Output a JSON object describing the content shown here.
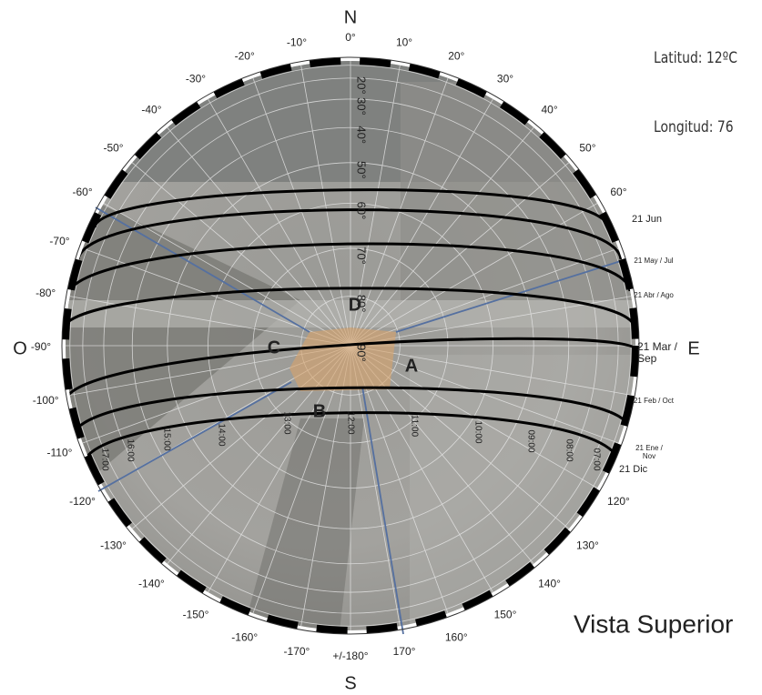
{
  "compass": {
    "north": "N",
    "south": "S",
    "west": "O",
    "east": "E"
  },
  "azimuth_labels": [
    {
      "value": 0,
      "label": "0°"
    },
    {
      "value": 10,
      "label": "10°"
    },
    {
      "value": 20,
      "label": "20°"
    },
    {
      "value": 30,
      "label": "30°"
    },
    {
      "value": 40,
      "label": "40°"
    },
    {
      "value": 50,
      "label": "50°"
    },
    {
      "value": 60,
      "label": "60°"
    },
    {
      "value": 120,
      "label": "120°"
    },
    {
      "value": 130,
      "label": "130°"
    },
    {
      "value": 140,
      "label": "140°"
    },
    {
      "value": 150,
      "label": "150°"
    },
    {
      "value": 160,
      "label": "160°"
    },
    {
      "value": 170,
      "label": "170°"
    },
    {
      "value": 180,
      "label": "+/-180°"
    },
    {
      "value": -10,
      "label": "-10°"
    },
    {
      "value": -20,
      "label": "-20°"
    },
    {
      "value": -30,
      "label": "-30°"
    },
    {
      "value": -40,
      "label": "-40°"
    },
    {
      "value": -50,
      "label": "-50°"
    },
    {
      "value": -60,
      "label": "-60°"
    },
    {
      "value": -70,
      "label": "-70°"
    },
    {
      "value": -80,
      "label": "-80°"
    },
    {
      "value": -90,
      "label": "-90°"
    },
    {
      "value": -100,
      "label": "-100°"
    },
    {
      "value": -110,
      "label": "-110°"
    },
    {
      "value": -120,
      "label": "-120°"
    },
    {
      "value": -130,
      "label": "-130°"
    },
    {
      "value": -140,
      "label": "-140°"
    },
    {
      "value": -150,
      "label": "-150°"
    },
    {
      "value": -160,
      "label": "-160°"
    },
    {
      "value": -170,
      "label": "-170°"
    }
  ],
  "altitude_labels": [
    {
      "value": 20,
      "label": "20°"
    },
    {
      "value": 30,
      "label": "30°"
    },
    {
      "value": 40,
      "label": "40°"
    },
    {
      "value": 50,
      "label": "50°"
    },
    {
      "value": 60,
      "label": "60°"
    },
    {
      "value": 70,
      "label": "70°"
    },
    {
      "value": 80,
      "label": "80°"
    },
    {
      "value": 90,
      "label": "90°"
    }
  ],
  "hour_labels": [
    "07:00",
    "08:00",
    "09:00",
    "10:00",
    "11:00",
    "12:00",
    "13:00",
    "14:00",
    "15:00",
    "16:00",
    "17:00"
  ],
  "date_labels": [
    "21 Jun",
    "21 May / Jul",
    "21 Abr / Ago",
    "21 Mar / Sep",
    "21 Feb / Oct",
    "21 Ene / Nov",
    "21 Dic"
  ],
  "zones": [
    "A",
    "B",
    "C",
    "D"
  ],
  "info": {
    "latitude": "Latitud: 12ºC",
    "longitude": "Longitud: 76"
  },
  "view_title": "Vista Superior"
}
